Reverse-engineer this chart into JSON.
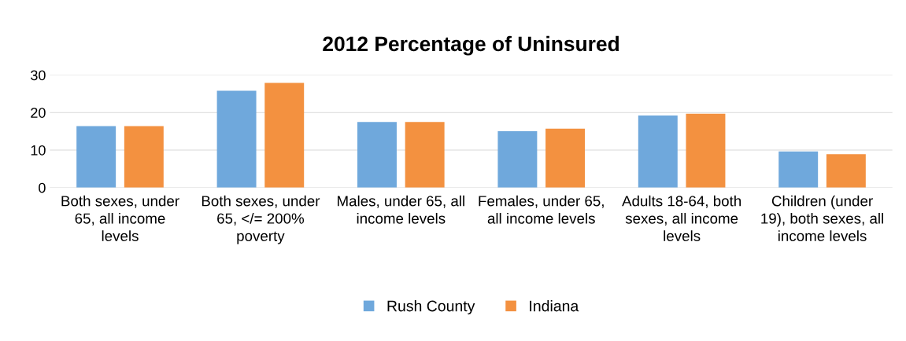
{
  "chart_data": {
    "type": "bar",
    "title": "2012 Percentage of Uninsured",
    "categories": [
      "Both sexes, under 65, all income levels",
      "Both sexes, under 65, </= 200% poverty",
      "Males, under 65, all income levels",
      "Females, under 65, all income levels",
      "Adults 18-64, both sexes, all income levels",
      "Children (under 19), both sexes, all income levels"
    ],
    "series": [
      {
        "name": "Rush County",
        "color": "#6fa8dc",
        "values": [
          16.4,
          25.8,
          17.5,
          15.0,
          19.2,
          9.6
        ]
      },
      {
        "name": "Indiana",
        "color": "#f39140",
        "values": [
          16.4,
          27.9,
          17.5,
          15.7,
          19.7,
          8.9
        ]
      }
    ],
    "ylim": [
      0,
      30
    ],
    "yticks": [
      0,
      10,
      20,
      30
    ],
    "grid": "y",
    "legend": "bottom"
  }
}
